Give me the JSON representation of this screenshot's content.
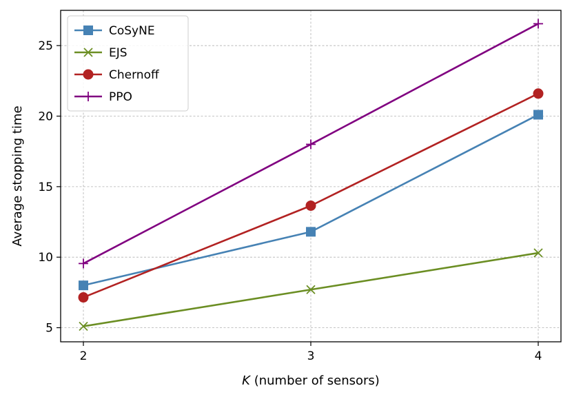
{
  "chart_data": {
    "type": "line",
    "title": "",
    "xlabel_var": "K",
    "xlabel_rest": " (number of sensors)",
    "ylabel": "Average stopping time",
    "x": [
      2,
      3,
      4
    ],
    "x_tick_labels": [
      "2",
      "3",
      "4"
    ],
    "xlim": [
      1.9,
      4.1
    ],
    "y_ticks": [
      5,
      10,
      15,
      20,
      25
    ],
    "y_tick_labels": [
      "5",
      "10",
      "15",
      "20",
      "25"
    ],
    "ylim": [
      4.0,
      27.5
    ],
    "grid": true,
    "legend_position": "top-left",
    "series": [
      {
        "name": "CoSyNE",
        "values": [
          8.0,
          11.8,
          20.1
        ],
        "color": "#4682b4",
        "marker": "square"
      },
      {
        "name": "EJS",
        "values": [
          5.1,
          7.7,
          10.3
        ],
        "color": "#6b8e23",
        "marker": "x"
      },
      {
        "name": "Chernoff",
        "values": [
          7.15,
          13.65,
          21.6
        ],
        "color": "#b22222",
        "marker": "circle"
      },
      {
        "name": "PPO",
        "values": [
          9.55,
          18.0,
          26.55
        ],
        "color": "#800080",
        "marker": "plus"
      }
    ]
  }
}
